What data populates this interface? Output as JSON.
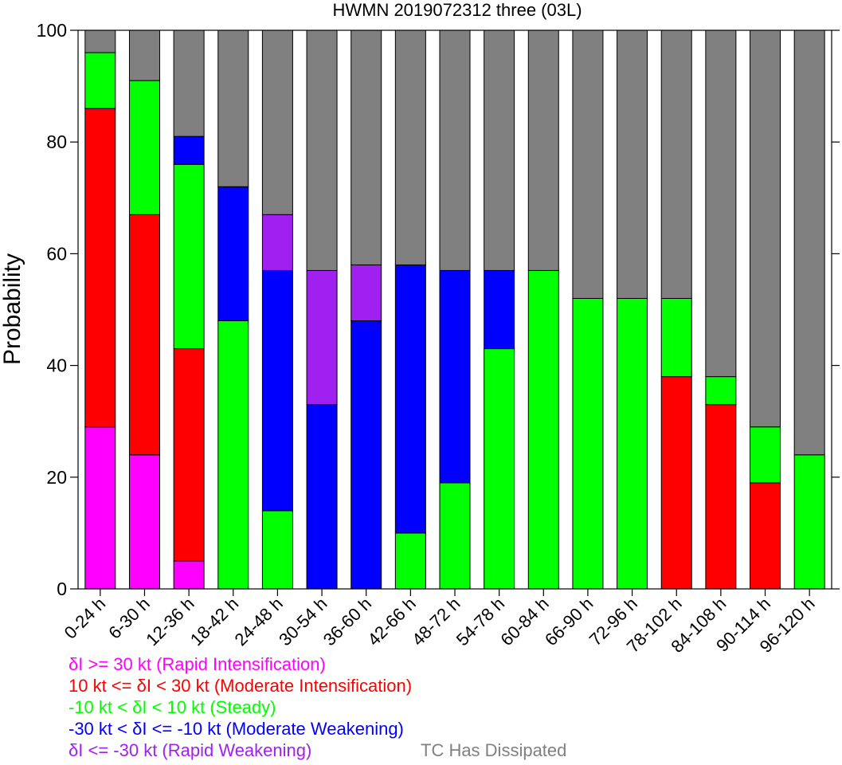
{
  "chart_data": {
    "type": "bar",
    "stacked": true,
    "title": "HWMN 2019072312 three (03L)",
    "ylabel": "Probability",
    "xlabel": "",
    "ylim": [
      0,
      100
    ],
    "yticks": [
      0,
      20,
      40,
      60,
      80,
      100
    ],
    "categories": [
      "0-24 h",
      "6-30 h",
      "12-36 h",
      "18-42 h",
      "24-48 h",
      "30-54 h",
      "36-60 h",
      "42-66 h",
      "48-72 h",
      "54-78 h",
      "60-84 h",
      "66-90 h",
      "72-96 h",
      "78-102 h",
      "84-108 h",
      "90-114 h",
      "96-120 h"
    ],
    "series": [
      {
        "name": "δI >= 30 kt (Rapid Intensification)",
        "color": "#ff00ff",
        "values": [
          29,
          24,
          5,
          0,
          0,
          0,
          0,
          0,
          0,
          0,
          0,
          0,
          0,
          0,
          0,
          0,
          0
        ]
      },
      {
        "name": "10 kt <= δI < 30 kt (Moderate Intensification)",
        "color": "#ff0000",
        "values": [
          57,
          43,
          38,
          0,
          0,
          0,
          0,
          0,
          0,
          0,
          0,
          0,
          0,
          38,
          33,
          19,
          0
        ]
      },
      {
        "name": "-10 kt < δI < 10 kt (Steady)",
        "color": "#00ff00",
        "values": [
          10,
          24,
          33,
          48,
          14,
          0,
          0,
          10,
          19,
          43,
          57,
          52,
          52,
          14,
          5,
          10,
          24
        ]
      },
      {
        "name": "-30 kt < δI <= -10 kt (Moderate Weakening)",
        "color": "#0000ff",
        "values": [
          0,
          0,
          5,
          24,
          43,
          33,
          48,
          48,
          38,
          14,
          0,
          0,
          0,
          0,
          0,
          0,
          0
        ]
      },
      {
        "name": "δI <= -30 kt (Rapid Weakening)",
        "color": "#a020f0",
        "values": [
          0,
          0,
          0,
          0,
          10,
          24,
          10,
          0,
          0,
          0,
          0,
          0,
          0,
          0,
          0,
          0,
          0
        ]
      },
      {
        "name": "TC Has Dissipated",
        "color": "#808080",
        "values": [
          4,
          9,
          19,
          28,
          33,
          43,
          42,
          42,
          43,
          43,
          43,
          48,
          48,
          48,
          62,
          71,
          76
        ]
      }
    ],
    "grid": false,
    "legend_position": "bottom-left"
  }
}
